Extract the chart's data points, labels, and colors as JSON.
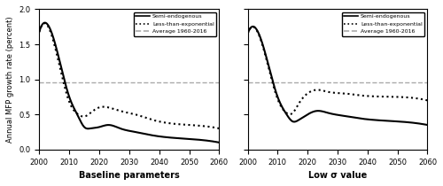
{
  "title_left": "Baseline parameters",
  "title_right": "Low σ value",
  "ylabel": "Annual MFP growth rate (percent)",
  "xlim": [
    2000,
    2060
  ],
  "ylim": [
    0,
    2
  ],
  "yticks": [
    0,
    0.5,
    1.0,
    1.5,
    2.0
  ],
  "xticks": [
    2000,
    2010,
    2020,
    2030,
    2040,
    2050,
    2060
  ],
  "average_line": 0.96,
  "legend_labels": [
    "Semi-endogenous",
    "Less-than-exponential",
    "Average 1960-2016"
  ],
  "line_color": "#000000",
  "dotted_color": "#000000",
  "avg_color": "#aaaaaa",
  "left_semi": [
    1.68,
    1.55,
    0.75,
    0.47,
    0.32,
    0.3,
    0.32,
    0.35,
    0.3,
    0.25,
    0.2,
    0.15,
    0.1
  ],
  "left_less": [
    1.68,
    1.5,
    0.68,
    0.5,
    0.47,
    0.52,
    0.6,
    0.6,
    0.55,
    0.5,
    0.42,
    0.35,
    0.3
  ],
  "right_semi": [
    1.65,
    1.5,
    0.75,
    0.5,
    0.4,
    0.42,
    0.5,
    0.55,
    0.52,
    0.48,
    0.44,
    0.4,
    0.35
  ],
  "right_less": [
    1.65,
    1.48,
    0.72,
    0.52,
    0.52,
    0.65,
    0.8,
    0.85,
    0.82,
    0.8,
    0.77,
    0.75,
    0.7
  ],
  "x_years": [
    2000,
    2005,
    2010,
    2013,
    2015,
    2017,
    2020,
    2023,
    2027,
    2032,
    2038,
    2050,
    2060
  ]
}
